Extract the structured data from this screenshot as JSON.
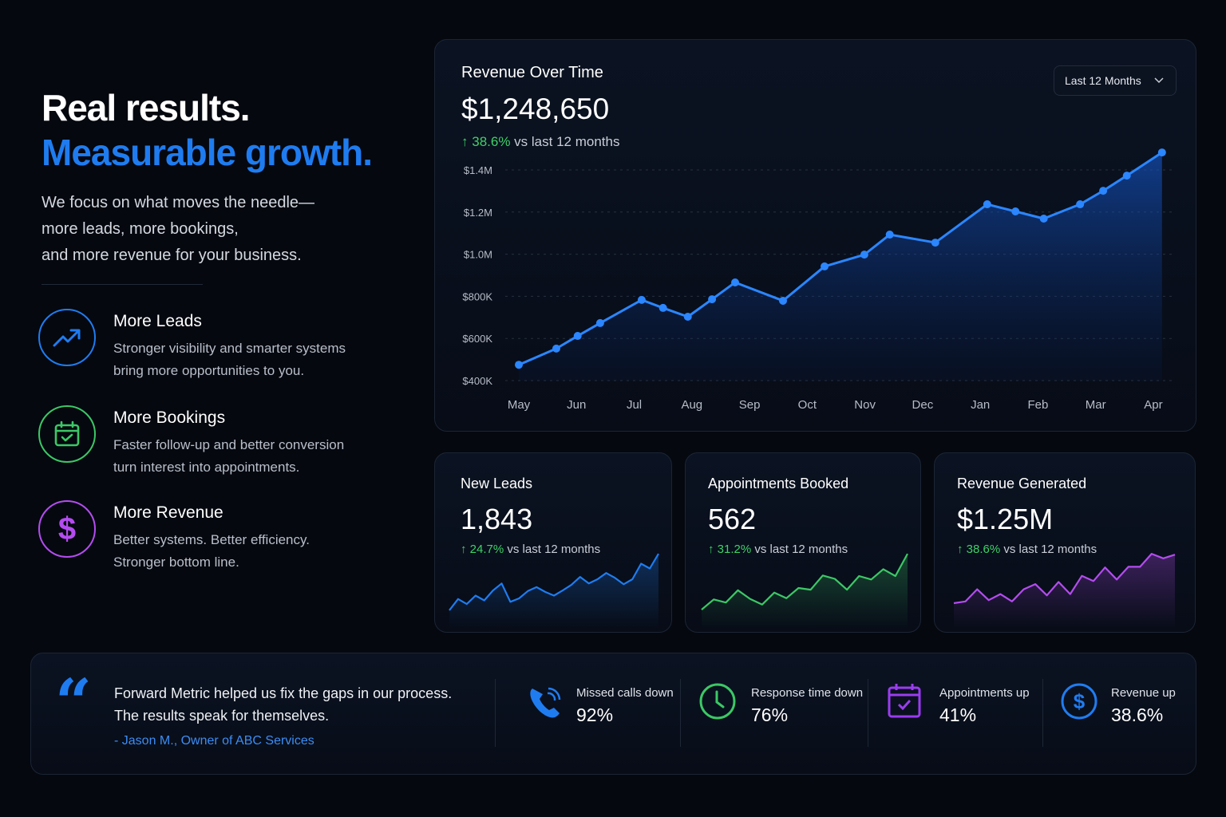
{
  "hero": {
    "title_line1": "Real results.",
    "title_line2": "Measurable growth.",
    "paragraph_lines": [
      "We focus on what moves the needle—",
      "more leads, more bookings,",
      "and more revenue for your business."
    ],
    "features": [
      {
        "title": "More Leads",
        "desc_lines": [
          "Stronger visibility and smarter systems",
          "bring more opportunities to you."
        ],
        "icon": "trending-up-icon",
        "color": "#1f7cf0"
      },
      {
        "title": "More Bookings",
        "desc_lines": [
          "Faster follow-up and better conversion",
          "turn interest into appointments."
        ],
        "icon": "calendar-check-icon",
        "color": "#3cc866"
      },
      {
        "title": "More Revenue",
        "desc_lines": [
          "Better systems. Better efficiency.",
          "Stronger bottom line."
        ],
        "icon": "dollar-icon",
        "color": "#b44cf0"
      }
    ]
  },
  "revenue_card": {
    "title": "Revenue Over Time",
    "value": "$1,248,650",
    "delta": "38.6%",
    "delta_suffix": "vs last 12 months",
    "range_selected": "Last 12 Months"
  },
  "chart_data": {
    "type": "area",
    "categories": [
      "May",
      "Jun",
      "Jul",
      "Aug",
      "Sep",
      "Oct",
      "Nov",
      "Dec",
      "Jan",
      "Feb",
      "Mar",
      "Apr"
    ],
    "y_tick_labels": [
      "$1.4M",
      "$1.2M",
      "$1.0M",
      "$800K",
      "$600K",
      "$400K"
    ],
    "y_ticks": [
      1400,
      1200,
      1000,
      800,
      600,
      400
    ],
    "ylim": [
      400,
      1400
    ],
    "yunit": "thousands USD",
    "grid": true,
    "color": "#2b86ff",
    "points": [
      {
        "x": 0,
        "y": 475
      },
      {
        "x": 0.65,
        "y": 552
      },
      {
        "x": 1.02,
        "y": 612
      },
      {
        "x": 1.41,
        "y": 673
      },
      {
        "x": 2.13,
        "y": 783
      },
      {
        "x": 2.5,
        "y": 745
      },
      {
        "x": 2.93,
        "y": 703
      },
      {
        "x": 3.35,
        "y": 786
      },
      {
        "x": 3.75,
        "y": 866
      },
      {
        "x": 4.58,
        "y": 779
      },
      {
        "x": 5.3,
        "y": 942
      },
      {
        "x": 5.99,
        "y": 998
      },
      {
        "x": 6.43,
        "y": 1093
      },
      {
        "x": 7.22,
        "y": 1055
      },
      {
        "x": 8.12,
        "y": 1237
      },
      {
        "x": 8.61,
        "y": 1203
      },
      {
        "x": 9.1,
        "y": 1169
      },
      {
        "x": 9.73,
        "y": 1237
      },
      {
        "x": 10.13,
        "y": 1301
      },
      {
        "x": 10.54,
        "y": 1373
      },
      {
        "x": 11.15,
        "y": 1483
      }
    ]
  },
  "kpis": [
    {
      "title": "New Leads",
      "value": "1,843",
      "delta": "24.7%",
      "delta_suffix": "vs last 12 months",
      "color": "#1f7cf0",
      "spark": [
        20,
        60,
        42,
        72,
        55,
        90,
        115,
        50,
        62,
        88,
        102,
        85,
        72,
        90,
        110,
        138,
        115,
        130,
        152,
        135,
        112,
        130,
        185,
        168,
        220
      ]
    },
    {
      "title": "Appointments Booked",
      "value": "562",
      "delta": "31.2%",
      "delta_suffix": "vs last 12 months",
      "color": "#3cc866",
      "spark": [
        22,
        58,
        47,
        90,
        60,
        40,
        82,
        62,
        98,
        92,
        142,
        130,
        92,
        140,
        128,
        164,
        140,
        218
      ]
    },
    {
      "title": "Revenue Generated",
      "value": "$1.25M",
      "delta": "38.6%",
      "delta_suffix": "vs last 12 months",
      "color": "#b44cf0",
      "spark": [
        42,
        48,
        88,
        52,
        72,
        48,
        88,
        105,
        68,
        112,
        72,
        132,
        115,
        160,
        120,
        162,
        162,
        205,
        190,
        202
      ]
    }
  ],
  "testimonial": {
    "quote_lines": [
      "Forward Metric helped us fix the gaps in our process.",
      "The results speak for themselves."
    ],
    "author": "- Jason M., Owner of ABC Services"
  },
  "stats": [
    {
      "label": "Missed calls down",
      "value": "92%",
      "icon": "phone-icon",
      "color": "#1f7cf0"
    },
    {
      "label": "Response time down",
      "value": "76%",
      "icon": "clock-icon",
      "color": "#3cc866"
    },
    {
      "label": "Appointments up",
      "value": "41%",
      "icon": "calendar-check-icon",
      "color": "#9b3cf0"
    },
    {
      "label": "Revenue up",
      "value": "38.6%",
      "icon": "dollar-circle-icon",
      "color": "#1f7cf0"
    }
  ]
}
